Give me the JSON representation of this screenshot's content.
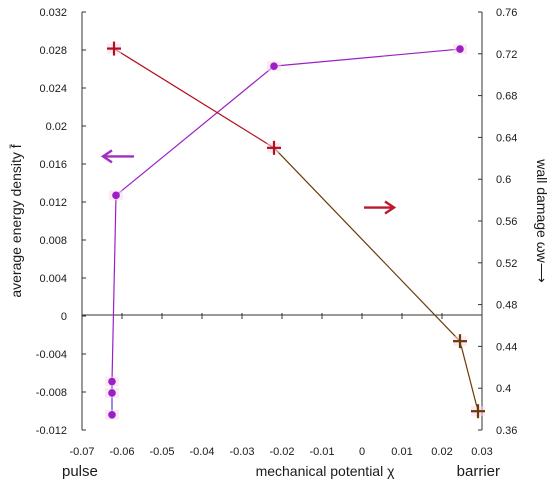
{
  "chart_data": {
    "type": "line",
    "xlabel": "mechanical potential χ",
    "ylabel_left": "average energy density f̄",
    "ylabel_right": "wall damage ωw⟶",
    "xlim": [
      -0.07,
      0.03
    ],
    "ylim_left": [
      -0.012,
      0.032
    ],
    "ylim_right": [
      0.36,
      0.76
    ],
    "x_ticks": [
      "-0.07",
      "-0.06",
      "-0.05",
      "-0.04",
      "-0.03",
      "-0.02",
      "-0.01",
      "0",
      "0.01",
      "0.02",
      "0.03"
    ],
    "y_ticks_left": [
      "-0.012",
      "-0.008",
      "-0.004",
      "0",
      "0.004",
      "0.008",
      "0.012",
      "0.016",
      "0.02",
      "0.024",
      "0.028",
      "0.032"
    ],
    "y_ticks_right": [
      "0.36",
      "0.4",
      "0.44",
      "0.48",
      "0.52",
      "0.56",
      "0.6",
      "0.64",
      "0.68",
      "0.72",
      "0.76"
    ],
    "left_end_label": "pulse",
    "right_end_label": "barrier",
    "series": [
      {
        "axis": "left",
        "marker": "circle",
        "color": "#9b1fc4",
        "color_alt": "#5a36e6",
        "x": [
          -0.0625,
          -0.0625,
          -0.0625,
          -0.0615,
          -0.022,
          0.0245
        ],
        "y": [
          -0.0104,
          -0.0081,
          -0.0069,
          0.0127,
          0.0263,
          0.0281
        ]
      },
      {
        "axis": "right",
        "marker": "plus",
        "color": "#b30f1c",
        "color_alt": "#6b3a06",
        "x": [
          -0.062,
          -0.022,
          0.0245,
          0.029
        ],
        "y": [
          0.725,
          0.63,
          0.445,
          0.378
        ]
      }
    ],
    "arrows": [
      {
        "axis": "left",
        "direction": "left",
        "color": "#a32fc0",
        "x_from": -0.055,
        "x_to": -0.06,
        "y": 0.0168
      },
      {
        "axis": "right",
        "direction": "right",
        "color": "#c0182a",
        "x_from": -0.0,
        "x_to": 0.0,
        "y": 0.57
      }
    ]
  }
}
